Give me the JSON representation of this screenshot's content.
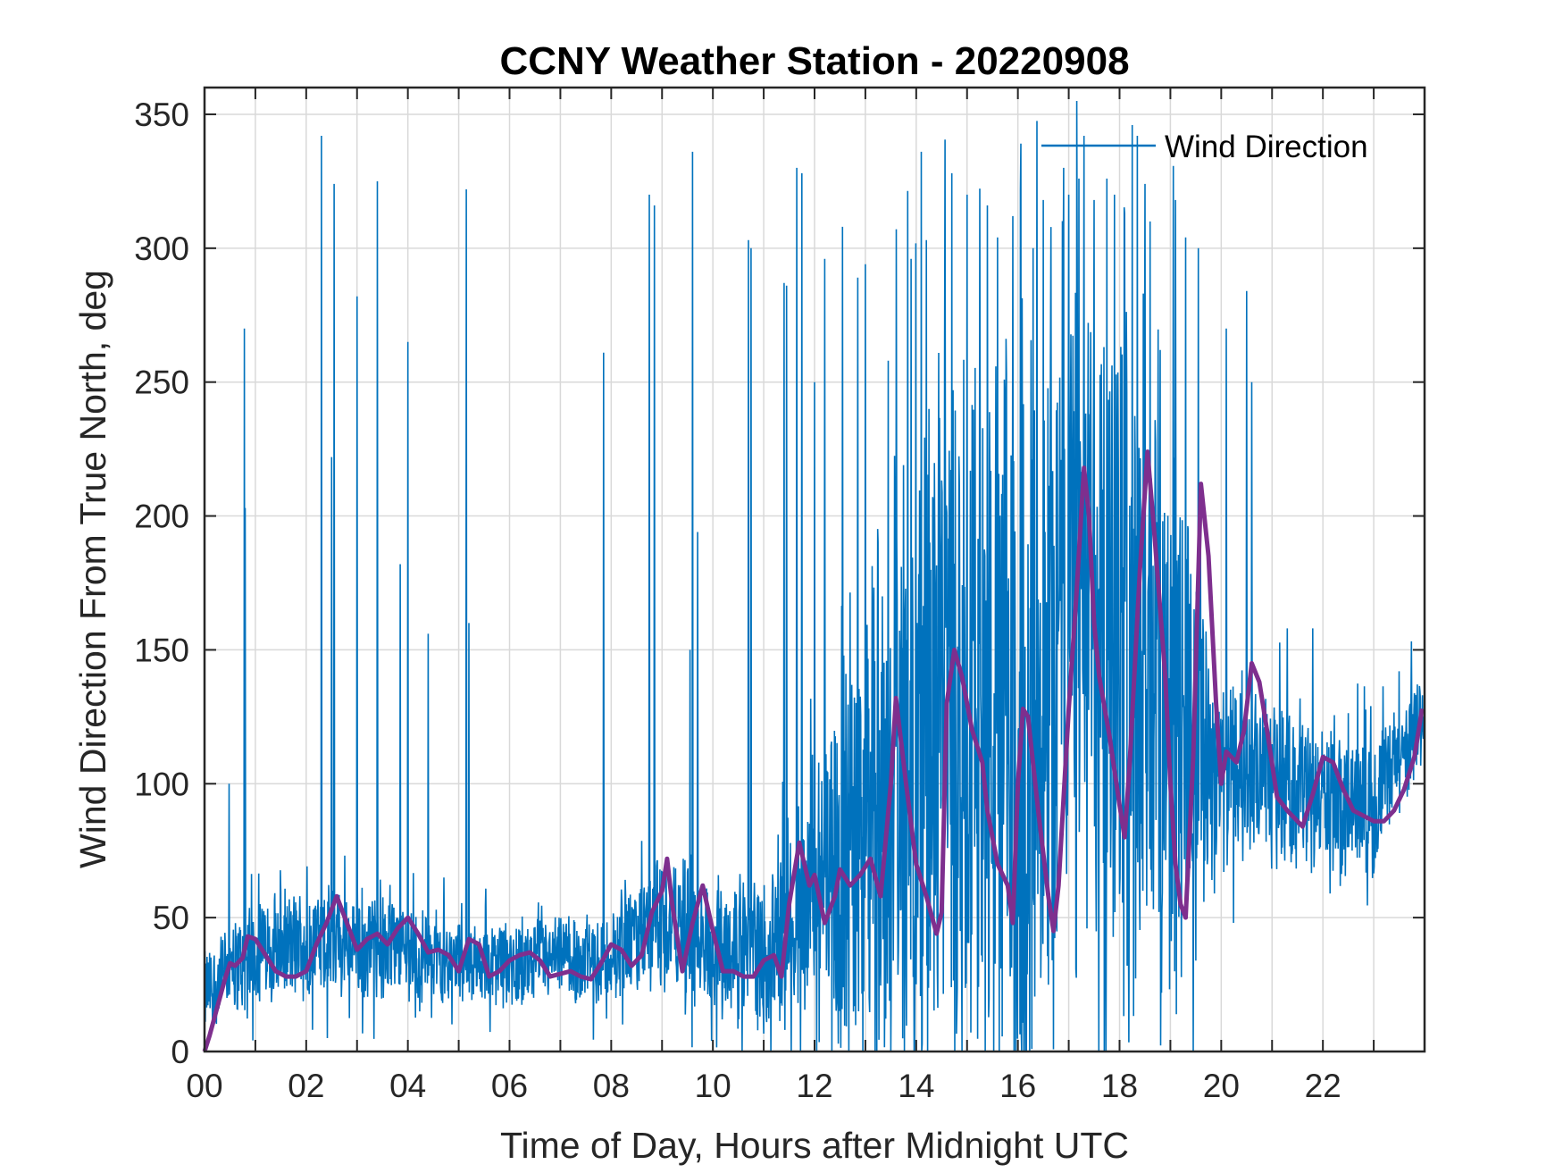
{
  "chart_data": {
    "type": "line",
    "title": "CCNY Weather Station - 20220908",
    "xlabel": "Time of Day, Hours after Midnight UTC",
    "ylabel": "Wind Direction From True North, deg",
    "xlim": [
      0,
      24
    ],
    "ylim": [
      0,
      360
    ],
    "xticks": [
      0,
      2,
      4,
      6,
      8,
      10,
      12,
      14,
      16,
      18,
      20,
      22
    ],
    "xtick_labels": [
      "00",
      "02",
      "04",
      "06",
      "08",
      "10",
      "12",
      "14",
      "16",
      "18",
      "20",
      "22"
    ],
    "yticks": [
      0,
      50,
      100,
      150,
      200,
      250,
      300,
      350
    ],
    "ytick_labels": [
      "0",
      "50",
      "100",
      "150",
      "200",
      "250",
      "300",
      "350"
    ],
    "grid": true,
    "legend": {
      "entries": [
        "Wind Direction"
      ],
      "location": "top-right"
    },
    "colors": {
      "raw": "#0072BD",
      "smoothed": "#7E2F8E",
      "grid": "#d9d9d9"
    },
    "series": [
      {
        "name": "Wind Direction (raw)",
        "style": "thin",
        "profile": {
          "hours": [
            0,
            1,
            2,
            3,
            4,
            5,
            6,
            7,
            8,
            9,
            10,
            11,
            12,
            13,
            14,
            15,
            16,
            17,
            18,
            19,
            20,
            21,
            22,
            23,
            24
          ],
          "center": [
            22,
            38,
            40,
            40,
            38,
            34,
            33,
            34,
            34,
            48,
            40,
            38,
            58,
            80,
            110,
            140,
            100,
            175,
            150,
            130,
            105,
            100,
            95,
            90,
            128
          ],
          "spread": [
            18,
            22,
            24,
            24,
            22,
            18,
            18,
            18,
            20,
            30,
            28,
            30,
            60,
            110,
            150,
            160,
            170,
            160,
            160,
            140,
            40,
            35,
            30,
            30,
            20
          ]
        },
        "spikes": [
          [
            0.78,
            270
          ],
          [
            0.8,
            203
          ],
          [
            0.48,
            100
          ],
          [
            2.3,
            342
          ],
          [
            2.55,
            324
          ],
          [
            2.5,
            222
          ],
          [
            3.0,
            282
          ],
          [
            3.4,
            325
          ],
          [
            3.85,
            182
          ],
          [
            4.0,
            265
          ],
          [
            4.4,
            156
          ],
          [
            5.15,
            322
          ],
          [
            5.2,
            160
          ],
          [
            7.85,
            261
          ],
          [
            8.75,
            320
          ],
          [
            8.85,
            316
          ],
          [
            9.6,
            336
          ],
          [
            9.55,
            150
          ],
          [
            9.7,
            194
          ],
          [
            10.7,
            303
          ],
          [
            10.75,
            300
          ],
          [
            11.4,
            287
          ],
          [
            11.45,
            286
          ],
          [
            11.65,
            330
          ],
          [
            11.75,
            328
          ],
          [
            12.0,
            250
          ],
          [
            12.2,
            296
          ],
          [
            12.55,
            308
          ],
          [
            12.85,
            289
          ],
          [
            13.0,
            294
          ],
          [
            13.45,
            258
          ],
          [
            13.9,
            296
          ],
          [
            14.1,
            336
          ],
          [
            14.2,
            303
          ],
          [
            14.7,
            328
          ],
          [
            15.0,
            320
          ],
          [
            15.4,
            316
          ],
          [
            15.6,
            304
          ],
          [
            15.9,
            312
          ],
          [
            16.05,
            322
          ],
          [
            16.3,
            300
          ],
          [
            16.5,
            318
          ],
          [
            16.9,
            330
          ],
          [
            17.0,
            320
          ],
          [
            17.2,
            326
          ],
          [
            17.3,
            342
          ],
          [
            17.5,
            318
          ],
          [
            17.75,
            326
          ],
          [
            17.9,
            320
          ],
          [
            18.1,
            313
          ],
          [
            18.25,
            346
          ],
          [
            18.35,
            342
          ],
          [
            18.5,
            324
          ],
          [
            18.6,
            310
          ],
          [
            18.8,
            262
          ],
          [
            19.1,
            318
          ],
          [
            19.3,
            304
          ],
          [
            19.55,
            300
          ],
          [
            20.1,
            270
          ],
          [
            20.5,
            284
          ],
          [
            20.6,
            250
          ],
          [
            21.3,
            158
          ],
          [
            21.8,
            158
          ],
          [
            23.5,
            142
          ]
        ]
      },
      {
        "name": "Wind Direction (smoothed)",
        "style": "thick",
        "x": [
          0,
          0.1,
          0.2,
          0.3,
          0.4,
          0.5,
          0.6,
          0.75,
          0.85,
          1.0,
          1.2,
          1.4,
          1.6,
          1.8,
          2.0,
          2.2,
          2.4,
          2.6,
          2.8,
          3.0,
          3.2,
          3.4,
          3.6,
          3.8,
          4.0,
          4.2,
          4.4,
          4.6,
          4.8,
          5.0,
          5.2,
          5.4,
          5.6,
          5.8,
          6.0,
          6.2,
          6.4,
          6.6,
          6.8,
          7.0,
          7.2,
          7.4,
          7.6,
          7.8,
          8.0,
          8.2,
          8.4,
          8.6,
          8.8,
          9.0,
          9.1,
          9.2,
          9.4,
          9.6,
          9.8,
          10.0,
          10.2,
          10.4,
          10.6,
          10.8,
          11.0,
          11.2,
          11.35,
          11.5,
          11.7,
          11.9,
          12.0,
          12.2,
          12.4,
          12.5,
          12.7,
          12.9,
          13.1,
          13.3,
          13.5,
          13.6,
          13.8,
          14.0,
          14.2,
          14.4,
          14.5,
          14.6,
          14.75,
          14.9,
          15.1,
          15.3,
          15.4,
          15.6,
          15.8,
          15.9,
          16.0,
          16.1,
          16.2,
          16.4,
          16.6,
          16.7,
          16.8,
          16.9,
          17.0,
          17.15,
          17.3,
          17.4,
          17.5,
          17.6,
          17.8,
          18.0,
          18.1,
          18.2,
          18.4,
          18.55,
          18.7,
          18.9,
          19.0,
          19.1,
          19.2,
          19.3,
          19.45,
          19.6,
          19.75,
          19.9,
          20.0,
          20.1,
          20.3,
          20.45,
          20.6,
          20.75,
          20.9,
          21.1,
          21.3,
          21.5,
          21.6,
          21.8,
          22.0,
          22.2,
          22.4,
          22.6,
          22.8,
          23.0,
          23.2,
          23.4,
          23.6,
          23.8,
          23.95
        ],
        "values": [
          0,
          6,
          13,
          20,
          27,
          33,
          32,
          35,
          43,
          42,
          36,
          30,
          28,
          28,
          30,
          40,
          48,
          58,
          48,
          38,
          42,
          44,
          40,
          46,
          50,
          44,
          37,
          38,
          36,
          30,
          42,
          40,
          28,
          30,
          34,
          36,
          37,
          34,
          28,
          29,
          30,
          28,
          27,
          33,
          40,
          38,
          32,
          36,
          52,
          60,
          72,
          55,
          30,
          48,
          62,
          45,
          30,
          30,
          28,
          28,
          34,
          36,
          28,
          55,
          78,
          62,
          66,
          48,
          58,
          68,
          62,
          66,
          72,
          58,
          100,
          132,
          100,
          70,
          58,
          44,
          52,
          130,
          150,
          140,
          120,
          108,
          90,
          70,
          62,
          48,
          100,
          128,
          125,
          90,
          58,
          45,
          62,
          95,
          128,
          170,
          218,
          200,
          160,
          140,
          118,
          92,
          80,
          108,
          180,
          224,
          190,
          140,
          100,
          70,
          55,
          50,
          110,
          212,
          185,
          130,
          100,
          112,
          108,
          120,
          145,
          138,
          120,
          95,
          90,
          86,
          84,
          96,
          110,
          108,
          98,
          90,
          88,
          86,
          86,
          90,
          98,
          110,
          128
        ]
      }
    ]
  }
}
